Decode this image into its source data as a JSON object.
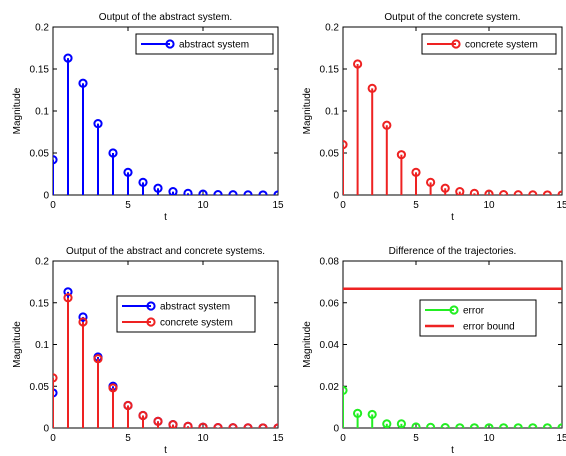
{
  "chart_data": [
    {
      "type": "stem",
      "title": "Output of the abstract system.",
      "xlabel": "t",
      "ylabel": "Magnitude",
      "xlim": [
        0,
        15
      ],
      "ylim": [
        0,
        0.2
      ],
      "xticks": [
        "0",
        "5",
        "10",
        "15"
      ],
      "yticks": [
        "0",
        "0.05",
        "0.1",
        "0.15",
        "0.2"
      ],
      "grid": false,
      "legend_position": "top-right",
      "x": [
        0,
        1,
        2,
        3,
        4,
        5,
        6,
        7,
        8,
        9,
        10,
        11,
        12,
        13,
        14,
        15
      ],
      "series": [
        {
          "name": "abstract system",
          "color": "#0000ff",
          "style": "stem",
          "values": [
            0.042,
            0.163,
            0.133,
            0.085,
            0.05,
            0.027,
            0.015,
            0.008,
            0.004,
            0.002,
            0.001,
            0.0005,
            0.0003,
            0.0002,
            0.0001,
            0.0001
          ]
        }
      ]
    },
    {
      "type": "stem",
      "title": "Output of the concrete system.",
      "xlabel": "t",
      "ylabel": "Magnitude",
      "xlim": [
        0,
        15
      ],
      "ylim": [
        0,
        0.2
      ],
      "xticks": [
        "0",
        "5",
        "10",
        "15"
      ],
      "yticks": [
        "0",
        "0.05",
        "0.1",
        "0.15",
        "0.2"
      ],
      "grid": false,
      "legend_position": "top-right",
      "x": [
        0,
        1,
        2,
        3,
        4,
        5,
        6,
        7,
        8,
        9,
        10,
        11,
        12,
        13,
        14,
        15
      ],
      "series": [
        {
          "name": "concrete system",
          "color": "#ee2222",
          "style": "stem",
          "values": [
            0.06,
            0.156,
            0.127,
            0.083,
            0.048,
            0.027,
            0.015,
            0.008,
            0.004,
            0.002,
            0.001,
            0.0005,
            0.0003,
            0.0002,
            0.0001,
            0.0001
          ]
        }
      ]
    },
    {
      "type": "stem",
      "title": "Output of the abstract and concrete systems.",
      "xlabel": "t",
      "ylabel": "Magnitude",
      "xlim": [
        0,
        15
      ],
      "ylim": [
        0,
        0.2
      ],
      "xticks": [
        "0",
        "5",
        "10",
        "15"
      ],
      "yticks": [
        "0",
        "0.05",
        "0.1",
        "0.15",
        "0.2"
      ],
      "grid": false,
      "legend_position": "center-right",
      "x": [
        0,
        1,
        2,
        3,
        4,
        5,
        6,
        7,
        8,
        9,
        10,
        11,
        12,
        13,
        14,
        15
      ],
      "series": [
        {
          "name": "abstract system",
          "color": "#0000ff",
          "style": "stem",
          "values": [
            0.042,
            0.163,
            0.133,
            0.085,
            0.05,
            0.027,
            0.015,
            0.008,
            0.004,
            0.002,
            0.001,
            0.0005,
            0.0003,
            0.0002,
            0.0001,
            0.0001
          ]
        },
        {
          "name": "concrete system",
          "color": "#ee2222",
          "style": "stem",
          "values": [
            0.06,
            0.156,
            0.127,
            0.083,
            0.048,
            0.027,
            0.015,
            0.008,
            0.004,
            0.002,
            0.001,
            0.0005,
            0.0003,
            0.0002,
            0.0001,
            0.0001
          ]
        }
      ]
    },
    {
      "type": "stem",
      "title": "Difference of the trajectories.",
      "xlabel": "t",
      "ylabel": "Magnitude",
      "xlim": [
        0,
        15
      ],
      "ylim": [
        0,
        0.08
      ],
      "xticks": [
        "0",
        "5",
        "10",
        "15"
      ],
      "yticks": [
        "0",
        "0.02",
        "0.04",
        "0.06",
        "0.08"
      ],
      "grid": false,
      "legend_position": "center-right",
      "x": [
        0,
        1,
        2,
        3,
        4,
        5,
        6,
        7,
        8,
        9,
        10,
        11,
        12,
        13,
        14,
        15
      ],
      "series": [
        {
          "name": "error",
          "color": "#22ee22",
          "style": "stem",
          "values": [
            0.018,
            0.007,
            0.0065,
            0.002,
            0.002,
            0.0005,
            0.0003,
            0.0002,
            0.0001,
            0.0001,
            0.0001,
            0.0001,
            0.0001,
            0.0001,
            0.0001,
            0.0001
          ]
        },
        {
          "name": "error bound",
          "color": "#ee2222",
          "style": "hline",
          "value": 0.0667
        }
      ]
    }
  ]
}
